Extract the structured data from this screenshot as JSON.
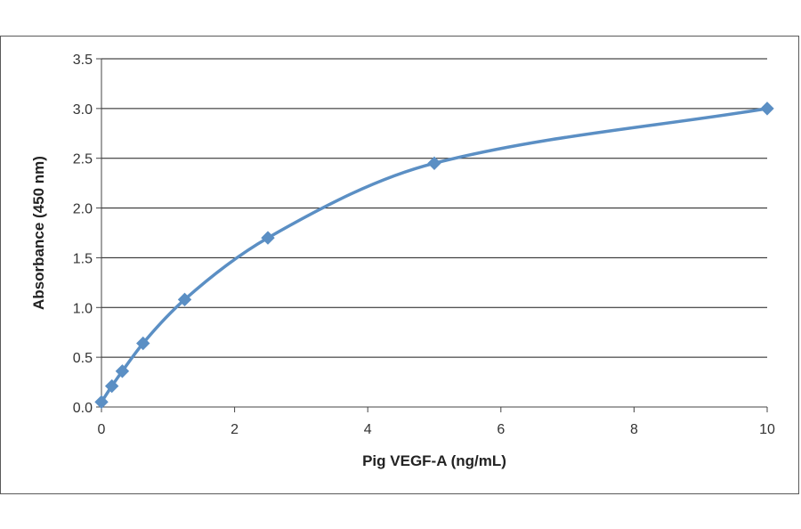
{
  "chart_data": {
    "type": "line",
    "title": "",
    "xlabel": "Pig VEGF-A  (ng/mL)",
    "ylabel": "Absorbance  (450 nm)",
    "xlim": [
      0,
      10
    ],
    "ylim": [
      0,
      3.5
    ],
    "x_ticks": [
      0,
      2,
      4,
      6,
      8,
      10
    ],
    "x_tick_labels": [
      "0",
      "2",
      "4",
      "6",
      "8",
      "10"
    ],
    "y_ticks": [
      0,
      0.5,
      1,
      1.5,
      2,
      2.5,
      3,
      3.5
    ],
    "y_tick_labels": [
      "0.0",
      "0.5",
      "1.0",
      "1.5",
      "2.0",
      "2.5",
      "3.0",
      "3.5"
    ],
    "grid": "horizontal",
    "legend": "none",
    "series": [
      {
        "color": "#5b8fc4",
        "marker": "diamond",
        "smooth": true,
        "x": [
          0,
          0.156,
          0.313,
          0.625,
          1.25,
          2.5,
          5,
          10
        ],
        "y": [
          0.05,
          0.21,
          0.36,
          0.64,
          1.08,
          1.7,
          2.45,
          3.0
        ]
      }
    ]
  }
}
